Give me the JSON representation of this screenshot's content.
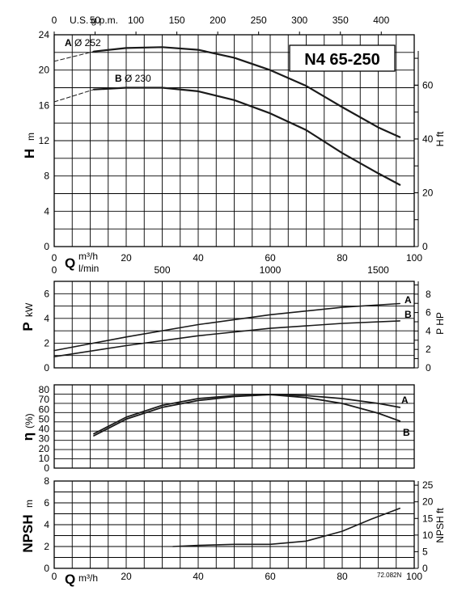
{
  "chart_data": [
    {
      "panel": "head",
      "type": "line",
      "title": "N4 65-250",
      "xlabel_main": "Q",
      "xunit_main": "m³/h",
      "xunit_secondary": "l/min",
      "xlabel_top": "U.S. g.p.m.",
      "ylabel": "H",
      "yunit": "m",
      "ylabel_right": "H ft",
      "x_ticks": [
        0,
        20,
        40,
        60,
        80,
        100
      ],
      "x_ticks_lmin": [
        0,
        500,
        1000,
        1500
      ],
      "x_ticks_gpm": [
        0,
        50,
        100,
        150,
        200,
        250,
        300,
        350,
        400
      ],
      "y_ticks": [
        0,
        4,
        8,
        12,
        16,
        20,
        24
      ],
      "y_ticks_right": [
        0,
        20,
        40,
        60
      ],
      "xlim": [
        0,
        100
      ],
      "ylim": [
        0,
        24
      ],
      "series": [
        {
          "name": "A",
          "sub": "Ø 252",
          "x": [
            11,
            20,
            30,
            40,
            50,
            60,
            70,
            80,
            90,
            96
          ],
          "y": [
            22.1,
            22.5,
            22.6,
            22.3,
            21.4,
            20.0,
            18.2,
            15.8,
            13.5,
            12.4
          ]
        },
        {
          "name": "B",
          "sub": "Ø 230",
          "x": [
            11,
            20,
            30,
            40,
            50,
            60,
            70,
            80,
            90,
            96
          ],
          "y": [
            17.8,
            18.0,
            18.0,
            17.6,
            16.6,
            15.1,
            13.2,
            10.6,
            8.3,
            7.0
          ]
        }
      ],
      "dashed": [
        {
          "x": [
            0,
            11
          ],
          "y": [
            21.0,
            22.1
          ]
        },
        {
          "x": [
            0,
            11
          ],
          "y": [
            16.4,
            17.8
          ]
        }
      ]
    },
    {
      "panel": "power",
      "type": "line",
      "ylabel": "P",
      "yunit": "kW",
      "ylabel_right": "P HP",
      "x_ticks": [
        0,
        20,
        40,
        60,
        80,
        100
      ],
      "y_ticks": [
        0,
        2,
        4,
        6
      ],
      "y_ticks_right": [
        0,
        2,
        4,
        6,
        8
      ],
      "xlim": [
        0,
        100
      ],
      "ylim": [
        0,
        7
      ],
      "series": [
        {
          "name": "A",
          "x": [
            0,
            20,
            40,
            60,
            80,
            96
          ],
          "y": [
            1.4,
            2.5,
            3.5,
            4.3,
            4.9,
            5.2
          ]
        },
        {
          "name": "B",
          "x": [
            0,
            20,
            40,
            60,
            80,
            96
          ],
          "y": [
            0.9,
            1.8,
            2.6,
            3.2,
            3.6,
            3.8
          ]
        }
      ]
    },
    {
      "panel": "efficiency",
      "type": "line",
      "ylabel": "η",
      "yunit": "(%)",
      "x_ticks": [
        0,
        20,
        40,
        60,
        80,
        100
      ],
      "y_ticks": [
        0,
        10,
        20,
        30,
        40,
        50,
        60,
        70,
        80
      ],
      "xlim": [
        0,
        100
      ],
      "ylim": [
        0,
        85
      ],
      "series": [
        {
          "name": "A",
          "x": [
            11,
            20,
            30,
            40,
            50,
            60,
            70,
            80,
            90,
            96
          ],
          "y": [
            33,
            50,
            62,
            69,
            73,
            75,
            74,
            71,
            66,
            62
          ]
        },
        {
          "name": "B",
          "x": [
            11,
            20,
            30,
            40,
            50,
            60,
            70,
            80,
            90,
            96
          ],
          "y": [
            35,
            52,
            64,
            71,
            74,
            75,
            72,
            66,
            56,
            48
          ]
        }
      ]
    },
    {
      "panel": "npsh",
      "type": "line",
      "ylabel": "NPSH",
      "yunit": "m",
      "ylabel_right": "NPSH ft",
      "xlabel_main": "Q",
      "xunit_main": "m³/h",
      "x_ticks": [
        0,
        20,
        40,
        60,
        80,
        100
      ],
      "y_ticks": [
        0,
        2,
        4,
        6,
        8
      ],
      "y_ticks_right": [
        0,
        5,
        10,
        15,
        20,
        25
      ],
      "xlim": [
        0,
        100
      ],
      "ylim": [
        0,
        8
      ],
      "series": [
        {
          "name": "",
          "x": [
            33,
            40,
            50,
            60,
            70,
            80,
            88,
            96
          ],
          "y": [
            2.0,
            2.1,
            2.2,
            2.2,
            2.5,
            3.4,
            4.5,
            5.5
          ]
        }
      ],
      "footnote": "72.082N"
    }
  ]
}
